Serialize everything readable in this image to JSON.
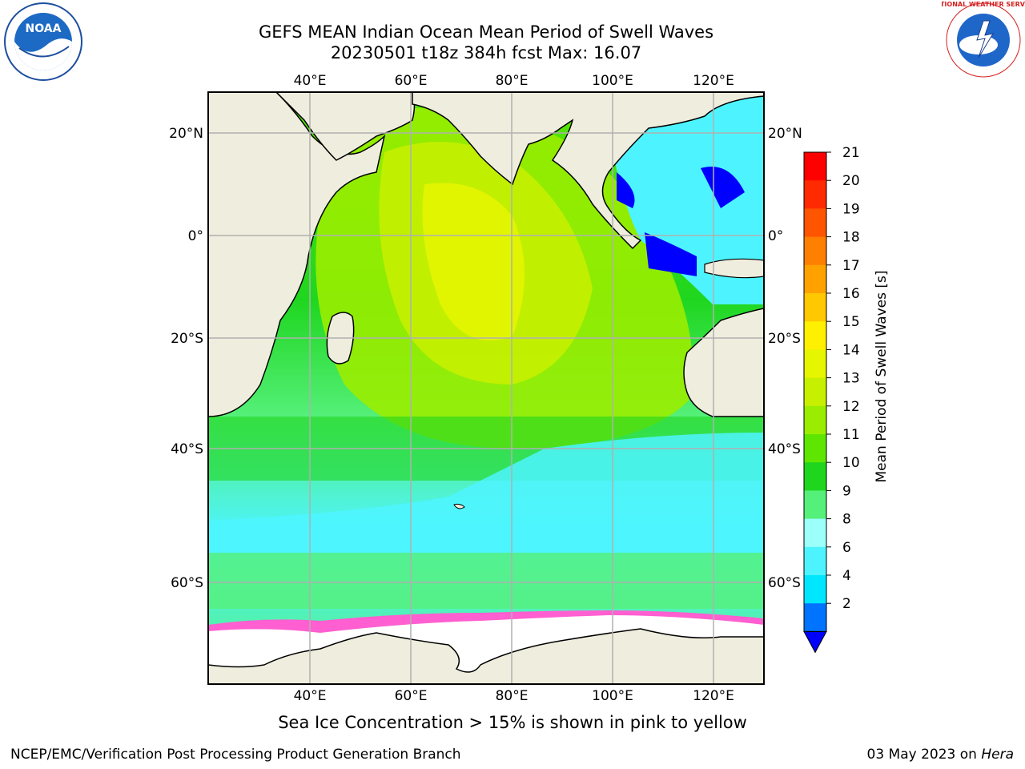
{
  "header": {
    "title_line1": "GEFS MEAN Indian Ocean Mean Period of Swell Waves",
    "title_line2": "20230501 t18z 384h fcst   Max: 16.07"
  },
  "logos": {
    "left": "NOAA",
    "right": "NATIONAL WEATHER SERVICE"
  },
  "map": {
    "lon_labels": [
      "40°E",
      "60°E",
      "80°E",
      "100°E",
      "120°E"
    ],
    "lat_labels_left": [
      "20°N",
      "0°",
      "20°S",
      "40°S",
      "60°S"
    ],
    "lat_labels_right": [
      "20°N",
      "0°",
      "20°S",
      "40°S",
      "60°S"
    ],
    "colors": {
      "land": "#efeddd",
      "ice": "#ffffff",
      "grid": "#b0b0b0"
    }
  },
  "colorbar": {
    "label": "Mean Period of Swell Waves [s]",
    "ticks": [
      "21",
      "20",
      "19",
      "18",
      "17",
      "16",
      "15",
      "14",
      "13",
      "12",
      "11",
      "10",
      "9",
      "8",
      "6",
      "4",
      "2"
    ],
    "colors": [
      "#ff0000",
      "#ff2a00",
      "#ff5500",
      "#ff7f00",
      "#ffa200",
      "#ffc800",
      "#ffef00",
      "#e6f500",
      "#c7f000",
      "#9aed00",
      "#5fe600",
      "#1fd61f",
      "#55f07a",
      "#9cfffa",
      "#4df4ff",
      "#00e6ff",
      "#0073ff"
    ],
    "under_color": "#0000ff"
  },
  "caption": "Sea Ice Concentration > 15% is shown in pink to yellow",
  "footer": {
    "left": "NCEP/EMC/Verification Post Processing Product Generation Branch",
    "date": "03 May 2023 on",
    "host": "Hera"
  }
}
